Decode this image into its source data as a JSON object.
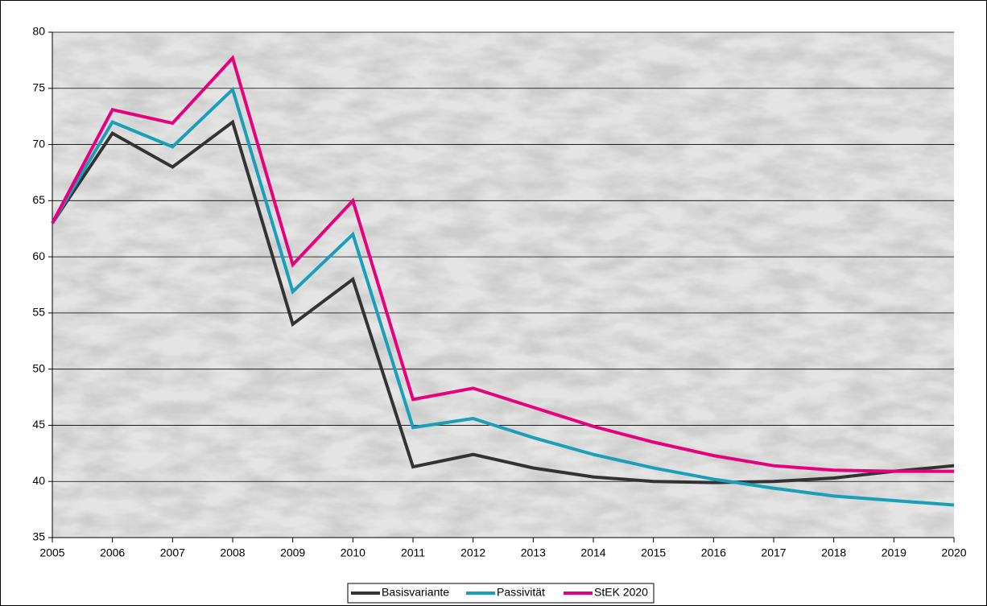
{
  "chart_data": {
    "type": "line",
    "x": [
      2005,
      2006,
      2007,
      2008,
      2009,
      2010,
      2011,
      2012,
      2013,
      2014,
      2015,
      2016,
      2017,
      2018,
      2019,
      2020
    ],
    "xlim": [
      2005,
      2020
    ],
    "xticks": [
      2005,
      2006,
      2007,
      2008,
      2009,
      2010,
      2011,
      2012,
      2013,
      2014,
      2015,
      2016,
      2017,
      2018,
      2019,
      2020
    ],
    "ylim": [
      35,
      80
    ],
    "yticks": [
      35,
      40,
      45,
      50,
      55,
      60,
      65,
      70,
      75,
      80
    ],
    "grid": true,
    "legend": "bottom",
    "series": [
      {
        "name": "Basisvariante",
        "color": "#333333",
        "values": [
          63,
          71,
          68,
          72,
          54,
          58,
          41.3,
          42.4,
          41.2,
          40.4,
          40.0,
          39.9,
          40.0,
          40.3,
          40.9,
          41.4
        ]
      },
      {
        "name": "Passivität",
        "color": "#1a9fb8",
        "values": [
          63,
          72,
          69.8,
          74.9,
          56.9,
          62,
          44.8,
          45.6,
          43.9,
          42.4,
          41.2,
          40.2,
          39.4,
          38.7,
          38.3,
          37.9
        ]
      },
      {
        "name": "StEK 2020",
        "color": "#e6007e",
        "values": [
          63,
          73.1,
          71.9,
          77.7,
          59.3,
          65,
          47.3,
          48.3,
          46.6,
          44.9,
          43.5,
          42.3,
          41.4,
          41.0,
          40.9,
          40.9
        ]
      }
    ]
  }
}
